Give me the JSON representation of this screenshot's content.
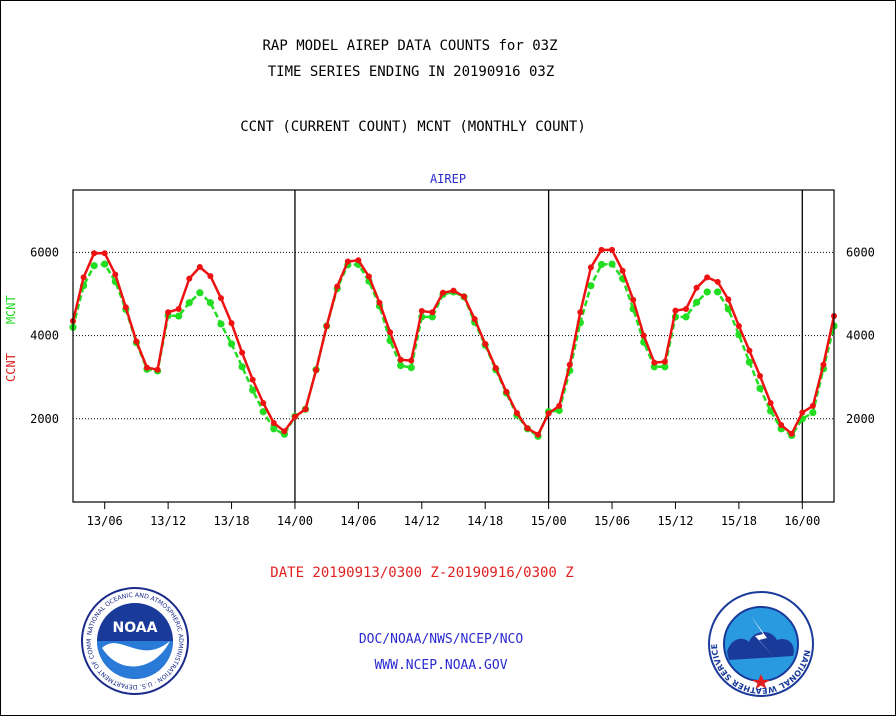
{
  "header": {
    "title_line1": "RAP MODEL AIREP DATA COUNTS for 03Z",
    "title_line2": "TIME SERIES ENDING IN 20190916 03Z",
    "subtitle": "CCNT (CURRENT COUNT) MCNT (MONTHLY COUNT)"
  },
  "footer": {
    "date_range": "DATE 20190913/0300 Z-20190916/0300 Z",
    "credit_line1": "DOC/NOAA/NWS/NCEP/NCO",
    "credit_line2": "WWW.NCEP.NOAA.GOV"
  },
  "logos": {
    "left": {
      "icon": "noaa-logo-icon",
      "text": "NOAA",
      "ring_text": "NATIONAL OCEANIC AND ATMOSPHERIC ADMINISTRATION · U.S. DEPARTMENT OF COMMERCE"
    },
    "right": {
      "icon": "nws-logo-icon",
      "ring_text": "NATIONAL WEATHER SERVICE"
    }
  },
  "chart_data": {
    "type": "line",
    "panel_label": "AIREP",
    "ylabel_parts": [
      "CCNT",
      "MCNT"
    ],
    "ylabel_colors": [
      "#e02020",
      "#22dd22"
    ],
    "x_ticks": [
      "13/06",
      "13/12",
      "13/18",
      "14/00",
      "14/06",
      "14/12",
      "14/18",
      "15/00",
      "15/06",
      "15/12",
      "15/18",
      "16/00"
    ],
    "x_tick_hours": [
      3,
      9,
      15,
      21,
      27,
      33,
      39,
      45,
      51,
      57,
      63,
      69
    ],
    "xlim_hours": [
      0,
      72
    ],
    "day_boundaries_hours": [
      21,
      45,
      69
    ],
    "y_ticks": [
      2000,
      4000,
      6000
    ],
    "ylim": [
      0,
      7500
    ],
    "grid_y": true,
    "series": [
      {
        "name": "CCNT",
        "color": "#ee1111",
        "hours": [
          0,
          1,
          2,
          3,
          4,
          5,
          6,
          7,
          8,
          9,
          10,
          11,
          12,
          13,
          14,
          15,
          16,
          17,
          18,
          19,
          20,
          21,
          22,
          23,
          24,
          25,
          26,
          27,
          28,
          29,
          30,
          31,
          32,
          33,
          34,
          35,
          36,
          37,
          38,
          39,
          40,
          41,
          42,
          43,
          44,
          45,
          46,
          47,
          48,
          49,
          50,
          51,
          52,
          53,
          54,
          55,
          56,
          57,
          58,
          59,
          60,
          61,
          62,
          63,
          64,
          65,
          66,
          67,
          68,
          69,
          70,
          71,
          72
        ],
        "values": [
          4350,
          5400,
          5980,
          5980,
          5470,
          4680,
          3860,
          3230,
          3180,
          4560,
          4640,
          5370,
          5650,
          5430,
          4900,
          4300,
          3590,
          2940,
          2380,
          1900,
          1700,
          2050,
          2230,
          3170,
          4230,
          5180,
          5780,
          5810,
          5420,
          4790,
          4080,
          3420,
          3400,
          4590,
          4560,
          5030,
          5080,
          4940,
          4400,
          3800,
          3220,
          2650,
          2140,
          1770,
          1620,
          2130,
          2310,
          3300,
          4560,
          5640,
          6060,
          6060,
          5560,
          4860,
          4000,
          3350,
          3370,
          4600,
          4640,
          5150,
          5400,
          5290,
          4870,
          4230,
          3640,
          3030,
          2380,
          1850,
          1640,
          2150,
          2310,
          3300,
          4470
        ]
      },
      {
        "name": "MCNT",
        "color": "#22dd22",
        "hours": [
          0,
          1,
          2,
          3,
          4,
          5,
          6,
          7,
          8,
          9,
          10,
          11,
          12,
          13,
          14,
          15,
          16,
          17,
          18,
          19,
          20,
          21,
          22,
          23,
          24,
          25,
          26,
          27,
          28,
          29,
          30,
          31,
          32,
          33,
          34,
          35,
          36,
          37,
          38,
          39,
          40,
          41,
          42,
          43,
          44,
          45,
          46,
          47,
          48,
          49,
          50,
          51,
          52,
          53,
          54,
          55,
          56,
          57,
          58,
          59,
          60,
          61,
          62,
          63,
          64,
          65,
          66,
          67,
          68,
          69,
          70,
          71,
          72
        ],
        "values": [
          4200,
          5200,
          5680,
          5720,
          5300,
          4630,
          3830,
          3190,
          3150,
          4480,
          4470,
          4790,
          5030,
          4790,
          4280,
          3800,
          3250,
          2690,
          2170,
          1760,
          1630,
          2060,
          2230,
          3180,
          4230,
          5130,
          5700,
          5710,
          5310,
          4710,
          3880,
          3280,
          3230,
          4450,
          4450,
          4990,
          5050,
          4930,
          4320,
          3770,
          3180,
          2620,
          2090,
          1760,
          1580,
          2170,
          2200,
          3160,
          4310,
          5200,
          5710,
          5720,
          5370,
          4640,
          3840,
          3250,
          3250,
          4450,
          4450,
          4800,
          5050,
          5050,
          4640,
          4020,
          3360,
          2730,
          2190,
          1760,
          1600,
          2000,
          2150,
          3200,
          4230
        ]
      }
    ]
  }
}
